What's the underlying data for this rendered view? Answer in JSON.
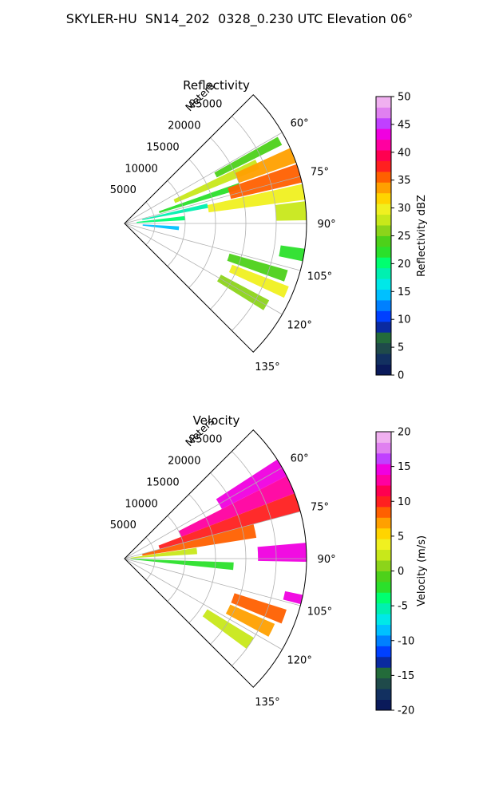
{
  "figure": {
    "title": "SKYLER-HU  SN14_202  0328_0.230 UTC Elevation 06°"
  },
  "chart_data": [
    {
      "type": "polar-sector",
      "title": "Reflectivity",
      "radial_label": "Meters",
      "azimuth_range_deg": [
        45,
        135
      ],
      "range_max_m": 30000,
      "radial_ticks": [
        5000,
        10000,
        15000,
        20000,
        25000
      ],
      "angle_ticks": [
        60,
        75,
        90,
        105,
        120,
        135
      ],
      "grid": true,
      "colorbar": {
        "label": "Reflectivity dBZ",
        "range": [
          0,
          50
        ],
        "ticks": [
          0,
          5,
          10,
          15,
          20,
          25,
          30,
          35,
          40,
          45,
          50
        ],
        "colors": [
          "#0a1a5a",
          "#123060",
          "#1f4a4a",
          "#236b3a",
          "#0a2aa0",
          "#0040ff",
          "#0080ff",
          "#00c0ff",
          "#00e8e8",
          "#00f0b0",
          "#00ff70",
          "#2be02b",
          "#4dd11a",
          "#8cd41a",
          "#c8e81a",
          "#f0f020",
          "#ffd400",
          "#ffa000",
          "#ff6000",
          "#ff2020",
          "#ff0050",
          "#ff00a0",
          "#f000e0",
          "#c040ff",
          "#e080f0",
          "#f0b0f0"
        ]
      },
      "echo_cells": [
        {
          "az": 62,
          "r": [
            17000,
            29000
          ],
          "w": 3,
          "v": 24
        },
        {
          "az": 66,
          "r": [
            9000,
            24000
          ],
          "w": 4,
          "v": 27
        },
        {
          "az": 68,
          "r": [
            20000,
            30000
          ],
          "w": 5,
          "v": 33
        },
        {
          "az": 72,
          "r": [
            6000,
            20000
          ],
          "w": 3,
          "v": 22
        },
        {
          "az": 74,
          "r": [
            18000,
            30000
          ],
          "w": 6,
          "v": 35
        },
        {
          "az": 78,
          "r": [
            3000,
            14000
          ],
          "w": 3,
          "v": 18
        },
        {
          "az": 80,
          "r": [
            14000,
            30000
          ],
          "w": 5,
          "v": 30
        },
        {
          "az": 85,
          "r": [
            2000,
            10000
          ],
          "w": 4,
          "v": 20
        },
        {
          "az": 86,
          "r": [
            25000,
            30000
          ],
          "w": 6,
          "v": 28
        },
        {
          "az": 95,
          "r": [
            3000,
            9000
          ],
          "w": 4,
          "v": 14
        },
        {
          "az": 100,
          "r": [
            26000,
            30000
          ],
          "w": 4,
          "v": 22
        },
        {
          "az": 108,
          "r": [
            18000,
            28000
          ],
          "w": 4,
          "v": 24
        },
        {
          "az": 113,
          "r": [
            19000,
            29000
          ],
          "w": 4,
          "v": 30
        },
        {
          "az": 120,
          "r": [
            18000,
            27000
          ],
          "w": 4,
          "v": 26
        }
      ]
    },
    {
      "type": "polar-sector",
      "title": "Velocity",
      "radial_label": "Meters",
      "azimuth_range_deg": [
        45,
        135
      ],
      "range_max_m": 30000,
      "radial_ticks": [
        5000,
        10000,
        15000,
        20000,
        25000
      ],
      "angle_ticks": [
        60,
        75,
        90,
        105,
        120,
        135
      ],
      "grid": true,
      "colorbar": {
        "label": "Velocity (m/s)",
        "range": [
          -20,
          20
        ],
        "ticks": [
          -20,
          -15,
          -10,
          -5,
          0,
          5,
          10,
          15,
          20
        ],
        "colors": [
          "#0a1a5a",
          "#123060",
          "#1f4a4a",
          "#236b3a",
          "#0a2aa0",
          "#0040ff",
          "#0080ff",
          "#00c0ff",
          "#00e8e8",
          "#00f0b0",
          "#00ff70",
          "#2be02b",
          "#4dd11a",
          "#8cd41a",
          "#c8e81a",
          "#f0f020",
          "#ffd400",
          "#ffa000",
          "#ff6000",
          "#ff2020",
          "#ff0050",
          "#ff00a0",
          "#f000e0",
          "#c040ff",
          "#e080f0",
          "#f0b0f0"
        ]
      },
      "echo_cells": [
        {
          "az": 60,
          "r": [
            18000,
            30000
          ],
          "w": 6,
          "v": 14
        },
        {
          "az": 66,
          "r": [
            10000,
            30000
          ],
          "w": 6,
          "v": 13
        },
        {
          "az": 72,
          "r": [
            6000,
            30000
          ],
          "w": 6,
          "v": 10
        },
        {
          "az": 78,
          "r": [
            3000,
            22000
          ],
          "w": 6,
          "v": 8
        },
        {
          "az": 84,
          "r": [
            1000,
            12000
          ],
          "w": 5,
          "v": 2
        },
        {
          "az": 88,
          "r": [
            22000,
            30000
          ],
          "w": 6,
          "v": 14
        },
        {
          "az": 94,
          "r": [
            1000,
            18000
          ],
          "w": 4,
          "v": -3
        },
        {
          "az": 103,
          "r": [
            27000,
            30000
          ],
          "w": 3,
          "v": 15
        },
        {
          "az": 110,
          "r": [
            19000,
            28000
          ],
          "w": 5,
          "v": 9
        },
        {
          "az": 116,
          "r": [
            19000,
            27000
          ],
          "w": 5,
          "v": 7
        },
        {
          "az": 124,
          "r": [
            16000,
            25000
          ],
          "w": 5,
          "v": 3
        }
      ]
    }
  ]
}
